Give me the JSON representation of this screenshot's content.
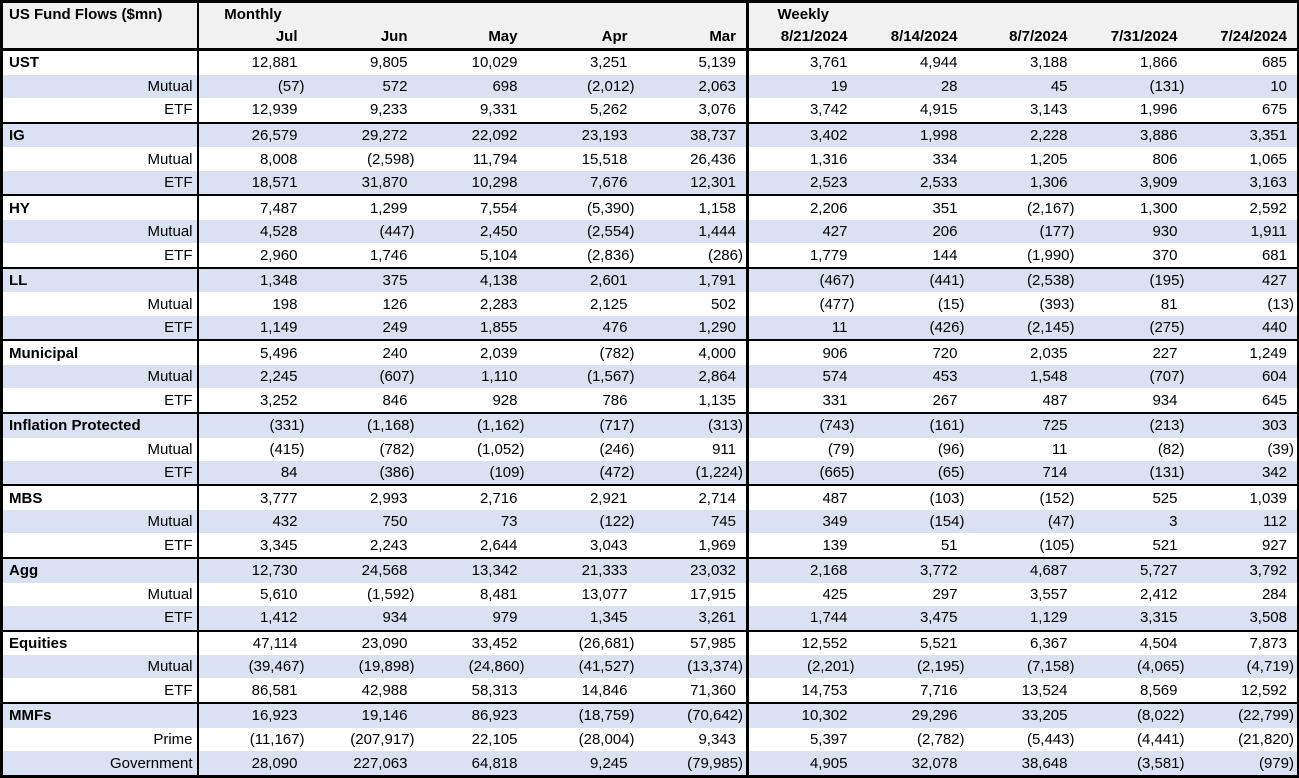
{
  "table": {
    "title": "US Fund Flows ($mn)",
    "group_headers": {
      "monthly": "Monthly",
      "weekly": "Weekly"
    },
    "monthly_columns": [
      "Jul",
      "Jun",
      "May",
      "Apr",
      "Mar"
    ],
    "weekly_columns": [
      "8/21/2024",
      "8/14/2024",
      "8/7/2024",
      "7/31/2024",
      "7/24/2024"
    ],
    "colors": {
      "stripe": "#d9e1f2",
      "header_bg": "#f1f1f1",
      "border": "#000000"
    },
    "groups": [
      {
        "label": "UST",
        "monthly": [
          "12,881",
          "9,805",
          "10,029",
          "3,251",
          "5,139"
        ],
        "weekly": [
          "3,761",
          "4,944",
          "3,188",
          "1,866",
          "685"
        ],
        "rows": [
          {
            "label": "Mutual",
            "monthly": [
              "(57)",
              "572",
              "698",
              "(2,012)",
              "2,063"
            ],
            "weekly": [
              "19",
              "28",
              "45",
              "(131)",
              "10"
            ]
          },
          {
            "label": "ETF",
            "monthly": [
              "12,939",
              "9,233",
              "9,331",
              "5,262",
              "3,076"
            ],
            "weekly": [
              "3,742",
              "4,915",
              "3,143",
              "1,996",
              "675"
            ]
          }
        ]
      },
      {
        "label": "IG",
        "monthly": [
          "26,579",
          "29,272",
          "22,092",
          "23,193",
          "38,737"
        ],
        "weekly": [
          "3,402",
          "1,998",
          "2,228",
          "3,886",
          "3,351"
        ],
        "rows": [
          {
            "label": "Mutual",
            "monthly": [
              "8,008",
              "(2,598)",
              "11,794",
              "15,518",
              "26,436"
            ],
            "weekly": [
              "1,316",
              "334",
              "1,205",
              "806",
              "1,065"
            ]
          },
          {
            "label": "ETF",
            "monthly": [
              "18,571",
              "31,870",
              "10,298",
              "7,676",
              "12,301"
            ],
            "weekly": [
              "2,523",
              "2,533",
              "1,306",
              "3,909",
              "3,163"
            ]
          }
        ]
      },
      {
        "label": "HY",
        "monthly": [
          "7,487",
          "1,299",
          "7,554",
          "(5,390)",
          "1,158"
        ],
        "weekly": [
          "2,206",
          "351",
          "(2,167)",
          "1,300",
          "2,592"
        ],
        "rows": [
          {
            "label": "Mutual",
            "monthly": [
              "4,528",
              "(447)",
              "2,450",
              "(2,554)",
              "1,444"
            ],
            "weekly": [
              "427",
              "206",
              "(177)",
              "930",
              "1,911"
            ]
          },
          {
            "label": "ETF",
            "monthly": [
              "2,960",
              "1,746",
              "5,104",
              "(2,836)",
              "(286)"
            ],
            "weekly": [
              "1,779",
              "144",
              "(1,990)",
              "370",
              "681"
            ]
          }
        ]
      },
      {
        "label": "LL",
        "monthly": [
          "1,348",
          "375",
          "4,138",
          "2,601",
          "1,791"
        ],
        "weekly": [
          "(467)",
          "(441)",
          "(2,538)",
          "(195)",
          "427"
        ],
        "rows": [
          {
            "label": "Mutual",
            "monthly": [
              "198",
              "126",
              "2,283",
              "2,125",
              "502"
            ],
            "weekly": [
              "(477)",
              "(15)",
              "(393)",
              "81",
              "(13)"
            ]
          },
          {
            "label": "ETF",
            "monthly": [
              "1,149",
              "249",
              "1,855",
              "476",
              "1,290"
            ],
            "weekly": [
              "11",
              "(426)",
              "(2,145)",
              "(275)",
              "440"
            ]
          }
        ]
      },
      {
        "label": "Municipal",
        "monthly": [
          "5,496",
          "240",
          "2,039",
          "(782)",
          "4,000"
        ],
        "weekly": [
          "906",
          "720",
          "2,035",
          "227",
          "1,249"
        ],
        "rows": [
          {
            "label": "Mutual",
            "monthly": [
              "2,245",
              "(607)",
              "1,110",
              "(1,567)",
              "2,864"
            ],
            "weekly": [
              "574",
              "453",
              "1,548",
              "(707)",
              "604"
            ]
          },
          {
            "label": "ETF",
            "monthly": [
              "3,252",
              "846",
              "928",
              "786",
              "1,135"
            ],
            "weekly": [
              "331",
              "267",
              "487",
              "934",
              "645"
            ]
          }
        ]
      },
      {
        "label": "Inflation Protected",
        "monthly": [
          "(331)",
          "(1,168)",
          "(1,162)",
          "(717)",
          "(313)"
        ],
        "weekly": [
          "(743)",
          "(161)",
          "725",
          "(213)",
          "303"
        ],
        "rows": [
          {
            "label": "Mutual",
            "monthly": [
              "(415)",
              "(782)",
              "(1,052)",
              "(246)",
              "911"
            ],
            "weekly": [
              "(79)",
              "(96)",
              "11",
              "(82)",
              "(39)"
            ]
          },
          {
            "label": "ETF",
            "monthly": [
              "84",
              "(386)",
              "(109)",
              "(472)",
              "(1,224)"
            ],
            "weekly": [
              "(665)",
              "(65)",
              "714",
              "(131)",
              "342"
            ]
          }
        ]
      },
      {
        "label": "MBS",
        "monthly": [
          "3,777",
          "2,993",
          "2,716",
          "2,921",
          "2,714"
        ],
        "weekly": [
          "487",
          "(103)",
          "(152)",
          "525",
          "1,039"
        ],
        "rows": [
          {
            "label": "Mutual",
            "monthly": [
              "432",
              "750",
              "73",
              "(122)",
              "745"
            ],
            "weekly": [
              "349",
              "(154)",
              "(47)",
              "3",
              "112"
            ]
          },
          {
            "label": "ETF",
            "monthly": [
              "3,345",
              "2,243",
              "2,644",
              "3,043",
              "1,969"
            ],
            "weekly": [
              "139",
              "51",
              "(105)",
              "521",
              "927"
            ]
          }
        ]
      },
      {
        "label": "Agg",
        "monthly": [
          "12,730",
          "24,568",
          "13,342",
          "21,333",
          "23,032"
        ],
        "weekly": [
          "2,168",
          "3,772",
          "4,687",
          "5,727",
          "3,792"
        ],
        "rows": [
          {
            "label": "Mutual",
            "monthly": [
              "5,610",
              "(1,592)",
              "8,481",
              "13,077",
              "17,915"
            ],
            "weekly": [
              "425",
              "297",
              "3,557",
              "2,412",
              "284"
            ]
          },
          {
            "label": "ETF",
            "monthly": [
              "1,412",
              "934",
              "979",
              "1,345",
              "3,261"
            ],
            "weekly": [
              "1,744",
              "3,475",
              "1,129",
              "3,315",
              "3,508"
            ]
          }
        ]
      },
      {
        "label": "Equities",
        "monthly": [
          "47,114",
          "23,090",
          "33,452",
          "(26,681)",
          "57,985"
        ],
        "weekly": [
          "12,552",
          "5,521",
          "6,367",
          "4,504",
          "7,873"
        ],
        "rows": [
          {
            "label": "Mutual",
            "monthly": [
              "(39,467)",
              "(19,898)",
              "(24,860)",
              "(41,527)",
              "(13,374)"
            ],
            "weekly": [
              "(2,201)",
              "(2,195)",
              "(7,158)",
              "(4,065)",
              "(4,719)"
            ]
          },
          {
            "label": "ETF",
            "monthly": [
              "86,581",
              "42,988",
              "58,313",
              "14,846",
              "71,360"
            ],
            "weekly": [
              "14,753",
              "7,716",
              "13,524",
              "8,569",
              "12,592"
            ]
          }
        ]
      },
      {
        "label": "MMFs",
        "monthly": [
          "16,923",
          "19,146",
          "86,923",
          "(18,759)",
          "(70,642)"
        ],
        "weekly": [
          "10,302",
          "29,296",
          "33,205",
          "(8,022)",
          "(22,799)"
        ],
        "rows": [
          {
            "label": "Prime",
            "monthly": [
              "(11,167)",
              "(207,917)",
              "22,105",
              "(28,004)",
              "9,343"
            ],
            "weekly": [
              "5,397",
              "(2,782)",
              "(5,443)",
              "(4,441)",
              "(21,820)"
            ]
          },
          {
            "label": "Government",
            "monthly": [
              "28,090",
              "227,063",
              "64,818",
              "9,245",
              "(79,985)"
            ],
            "weekly": [
              "4,905",
              "32,078",
              "38,648",
              "(3,581)",
              "(979)"
            ]
          }
        ]
      }
    ]
  }
}
